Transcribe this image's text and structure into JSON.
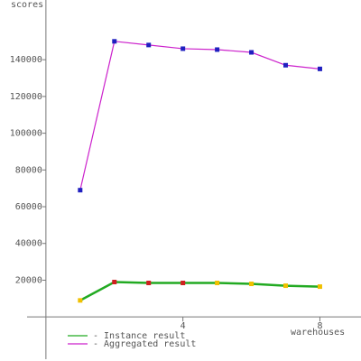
{
  "chart_data": {
    "type": "line",
    "y_label": "scores",
    "x_label": "warehouses",
    "x": [
      1,
      2,
      3,
      4,
      5,
      6,
      7,
      8
    ],
    "series": [
      {
        "name": "- Instance result",
        "color": "#22aa22",
        "values": [
          9000,
          19000,
          18500,
          18500,
          18500,
          18000,
          17000,
          16500
        ],
        "marker_colors": [
          "#f0c000",
          "#d02020",
          "#d02020",
          "#d02020",
          "#f0c000",
          "#f0c000",
          "#f0c000",
          "#f0c000"
        ]
      },
      {
        "name": "- Aggregated result",
        "color": "#cc22cc",
        "values": [
          69000,
          150000,
          148000,
          146000,
          145500,
          144000,
          137000,
          135000
        ],
        "marker_colors": [
          "#2020c0",
          "#2020c0",
          "#2020c0",
          "#2020c0",
          "#2020c0",
          "#2020c0",
          "#2020c0",
          "#2020c0"
        ]
      }
    ],
    "xlim": [
      -0.55,
      9.2
    ],
    "ylim": [
      -23000,
      172500
    ],
    "xticks": [
      4,
      8
    ],
    "yticks": [
      20000,
      40000,
      60000,
      80000,
      100000,
      120000,
      140000
    ],
    "grid": false
  }
}
